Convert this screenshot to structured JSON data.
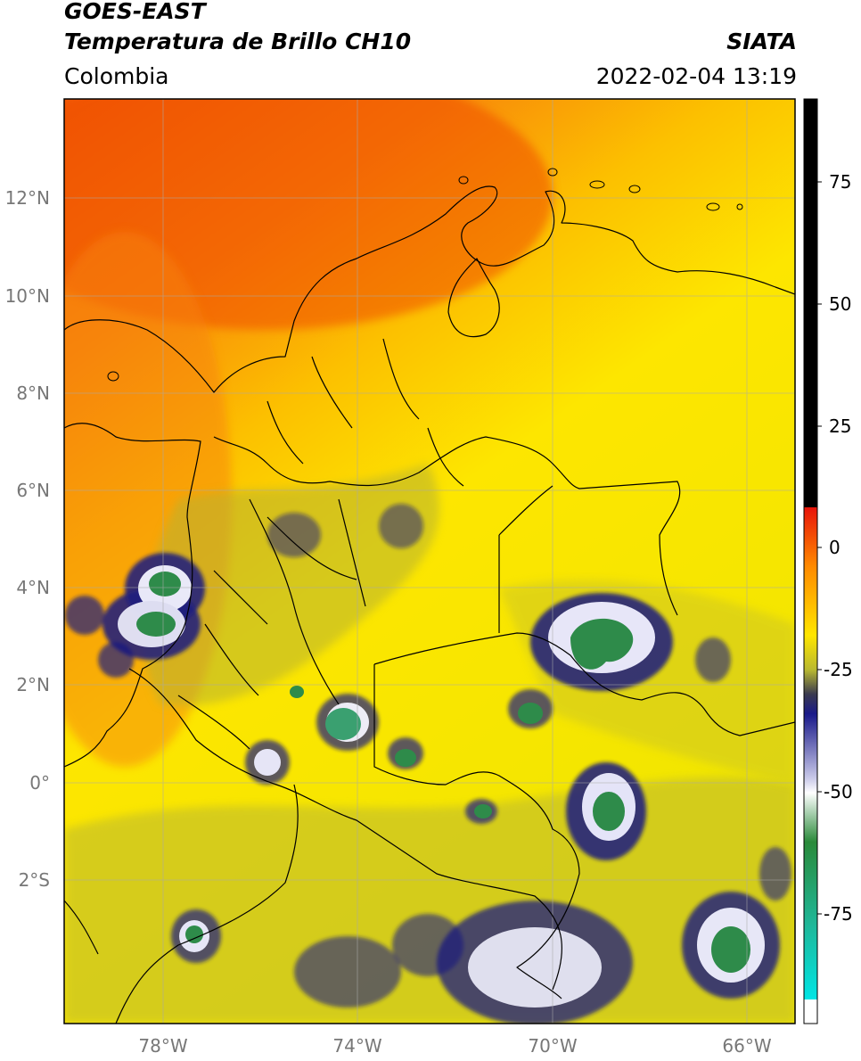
{
  "header": {
    "title_line1": "GOES-EAST",
    "title_line2": "Temperatura de Brillo CH10",
    "region": "Colombia",
    "brand": "SIATA",
    "datetime": "2022-02-04 13:19"
  },
  "axes": {
    "lat_labels": [
      "12°N",
      "10°N",
      "8°N",
      "6°N",
      "4°N",
      "2°N",
      "0°",
      "2°S"
    ],
    "lon_labels": [
      "78°W",
      "74°W",
      "70°W",
      "66°W"
    ]
  },
  "colorbar": {
    "tick_labels": [
      "75",
      "50",
      "25",
      "0",
      "-25",
      "-50",
      "-75"
    ],
    "colors": [
      "#000000",
      "#e8140a",
      "#ff8c00",
      "#ffe600",
      "#b9b930",
      "#1a1a7a",
      "#ffffff",
      "#2a8a3a",
      "#1fb89a",
      "#00e5e5"
    ]
  },
  "icons": [
    "coastline-borders"
  ]
}
